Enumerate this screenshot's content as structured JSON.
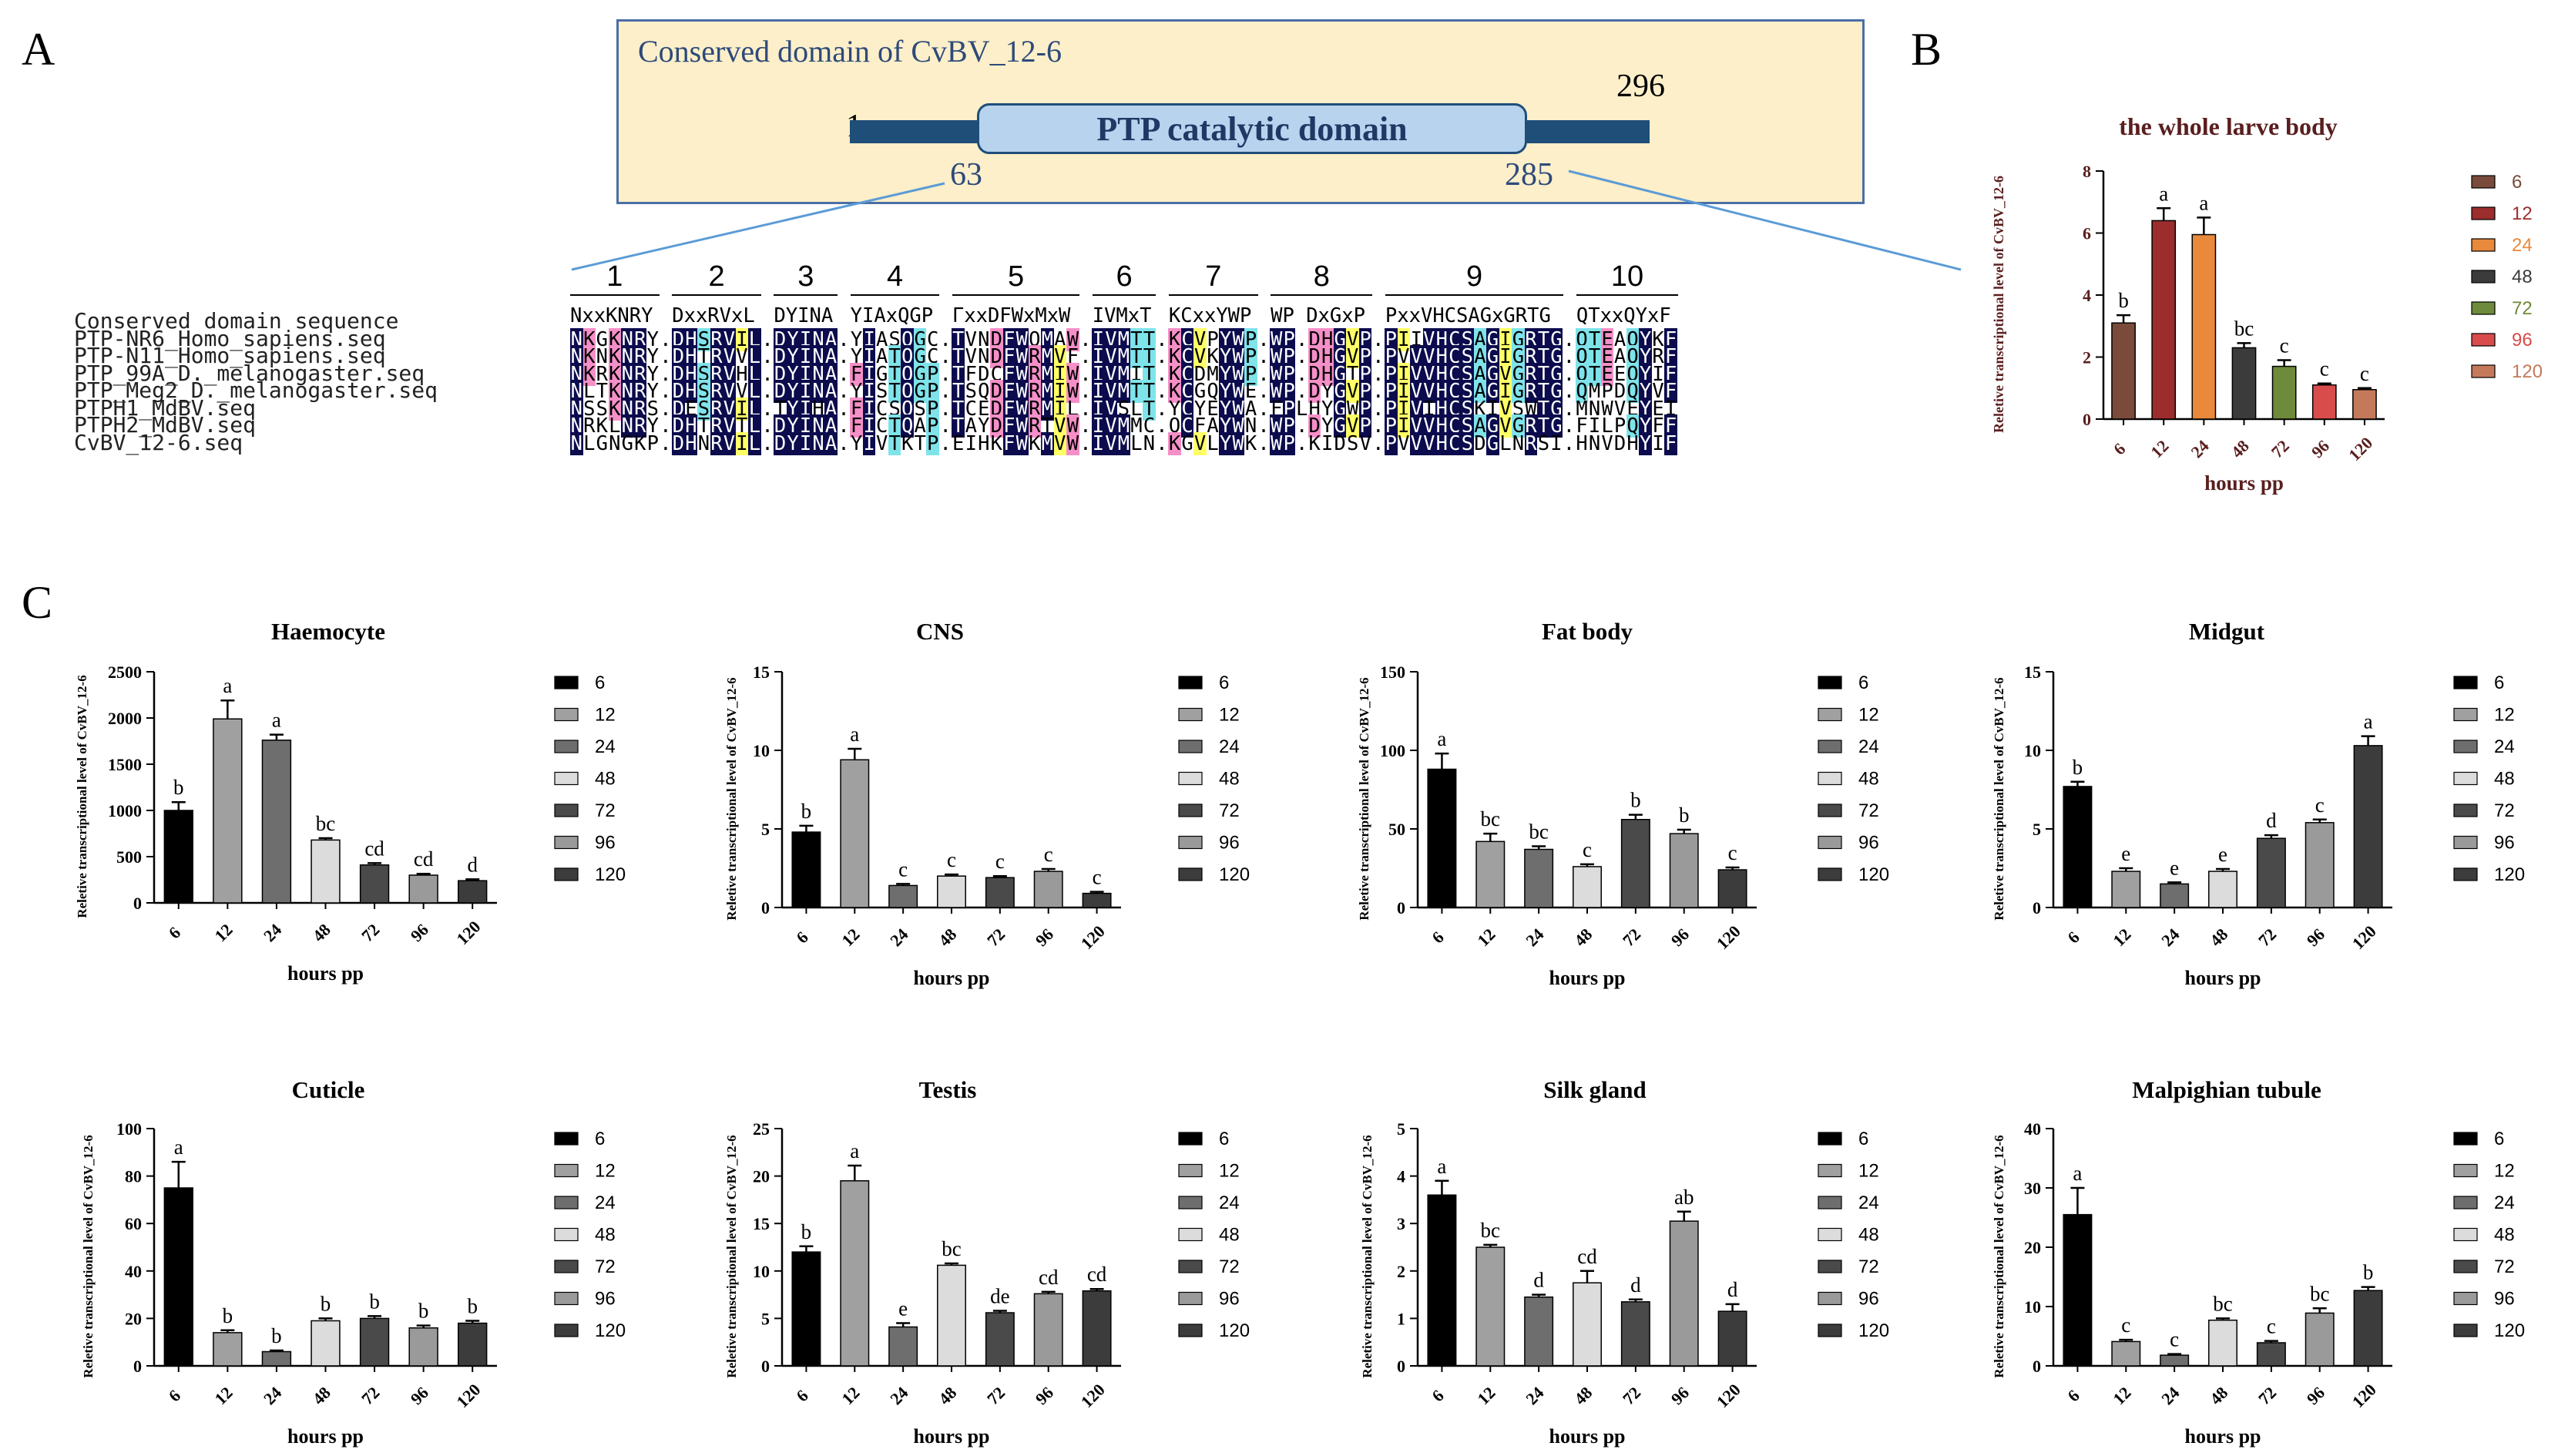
{
  "panel_labels": {
    "a": "A",
    "b": "B",
    "c": "C"
  },
  "domain_diagram": {
    "title": "Conserved domain  of CvBV_12-6",
    "start": "1",
    "end": "296",
    "domain_start": "63",
    "domain_end": "285",
    "domain_label": "PTP catalytic domain",
    "colors": {
      "box_bg": "#fcefc9",
      "bar": "#1f4e79",
      "domain_fill": "#b7d3ee",
      "text": "#2e4a7a"
    }
  },
  "alignment": {
    "motif_numbers": [
      "1",
      "2",
      "3",
      "4",
      "5",
      "6",
      "7",
      "8",
      "9",
      "10"
    ],
    "consensus": [
      "NxxKNRY",
      "DxxRVxL",
      "DYINA",
      "YIAxQGP",
      "ΓxxDFWxMxW",
      "IVMxT",
      "KCxxYWP",
      "WP DxGxP",
      "PxxVHCSAGxGRTG",
      "QTxxQYxF"
    ],
    "labels": [
      "Conserved domain sequence",
      "PTP-NR6_Homo_sapiens.seq",
      "PTP-N11_Homo_sapiens.seq",
      "PTP_99A_D._melanogaster.seq",
      "PTP_Meg2_D._melanogaster.seq",
      "PTPH1_MdBV.seq",
      "PTPH2_MdBV.seq",
      "CvBV_12-6.seq"
    ],
    "rows": [
      "NKGKNRY.DHSRVIL.DYINA.YIASQGC.TVNDFWQMAW.IVMTT.KCVPYWP.WP.DHGVP.PIIVHCSAGIGRTG.QTEAQYKF",
      "NKNKNRY.DHTRVVL.DYINA.YIATQGC.TVNDFWRMVF.IVMTT.KCVKYWP.WP.DHGVP.PVVVHCSAGIGRTG.QTEAQYRF",
      "NKRKNRY.DHSRVHL.DYINA.FIGTQGP.TFDCFWRMIW.IVMIT.KCDMYWP.WP.DHGTP.PIVVHCSAGVGRTG.QTEEQYIF",
      "NLTKNRY.DHSRVVL.DYINA.YISTQGP.TSQDFWRMIW.IVMTT.KCGQYWE.WP.DYGVP.PIVVHCSAGIGRTG.QMPDQYVF",
      "NSSKNRS.DESRVIL.TYIHA.FICSQSP.TCEDFWRMIL.IVSLT.YCYEYWA.FPLHYGWP.PIVIHCSKIVSWTG.MNWVEYEI",
      "NRKLNRY.DHTRVTL.DYINA.FICTQAP.TAYDFWRTVW.IVMMC.QCFAYWN.WP.DYGVP.PIVVHCSAGVGRTG.FILPQYFF",
      "NLGNGKP.DHNRVIL.DYINA.YIVTKTP.EIHKFWKMVW.IVMLN.KGVLYWK.WP.KIDSV.PVVVHCSDGLNRSI.HNVDHYIF"
    ],
    "highlight_colors": {
      "navy": "#0b0b4d",
      "cyan": "#7fe3ea",
      "pink": "#f58fc8",
      "yellow": "#ffff66"
    }
  },
  "chart_data": [
    {
      "type": "bar",
      "title": "the whole larve body",
      "xlabel": "hours pp",
      "ylabel": "Reletive transcriptional level of CvBV_12-6",
      "categories": [
        "6",
        "12",
        "24",
        "48",
        "72",
        "96",
        "120"
      ],
      "values": [
        3.1,
        6.4,
        5.95,
        2.3,
        1.7,
        1.1,
        0.95
      ],
      "errors": [
        0.25,
        0.4,
        0.55,
        0.15,
        0.2,
        0.05,
        0.05
      ],
      "letters": [
        "b",
        "a",
        "a",
        "bc",
        "c",
        "c",
        "c"
      ],
      "ylim": [
        0,
        8
      ],
      "yticks": [
        "0",
        "2",
        "4",
        "6",
        "8"
      ],
      "legend": [
        "6",
        "12",
        "24",
        "48",
        "72",
        "96",
        "120"
      ],
      "colors": [
        "#7a4a3a",
        "#9b2d2d",
        "#e8893c",
        "#3b3b3b",
        "#6d8b3a",
        "#d94c4c",
        "#c47a5a"
      ],
      "legend_text_colors": [
        "#7a4a3a",
        "#9b2d2d",
        "#e8893c",
        "#3b3b3b",
        "#6d8b3a",
        "#d94c4c",
        "#c47a5a"
      ]
    },
    {
      "type": "bar",
      "title": "Haemocyte",
      "xlabel": "hours pp",
      "ylabel": "Reletive transcriptional level of CvBV_12-6",
      "categories": [
        "6",
        "12",
        "24",
        "48",
        "72",
        "96",
        "120"
      ],
      "values": [
        1000,
        1990,
        1760,
        680,
        410,
        300,
        240
      ],
      "errors": [
        90,
        200,
        60,
        20,
        20,
        15,
        15
      ],
      "letters": [
        "b",
        "a",
        "a",
        "bc",
        "cd",
        "cd",
        "d"
      ],
      "ylim": [
        0,
        2500
      ],
      "yticks": [
        "0",
        "500",
        "1000",
        "1500",
        "2000",
        "2500"
      ],
      "legend": [
        "6",
        "12",
        "24",
        "48",
        "72",
        "96",
        "120"
      ]
    },
    {
      "type": "bar",
      "title": "CNS",
      "xlabel": "hours pp",
      "ylabel": "Reletive transcriptional level of CvBV_12-6",
      "categories": [
        "6",
        "12",
        "24",
        "48",
        "72",
        "96",
        "120"
      ],
      "values": [
        4.8,
        9.4,
        1.4,
        2.0,
        1.9,
        2.3,
        0.9
      ],
      "errors": [
        0.4,
        0.7,
        0.1,
        0.1,
        0.1,
        0.15,
        0.1
      ],
      "letters": [
        "b",
        "a",
        "c",
        "c",
        "c",
        "c",
        "c"
      ],
      "ylim": [
        0,
        15
      ],
      "yticks": [
        "0",
        "5",
        "10",
        "15"
      ],
      "legend": [
        "6",
        "12",
        "24",
        "48",
        "72",
        "96",
        "120"
      ]
    },
    {
      "type": "bar",
      "title": "Fat body",
      "xlabel": "hours pp",
      "ylabel": "Reletive transcriptional level of CvBV_12-6",
      "categories": [
        "6",
        "12",
        "24",
        "48",
        "72",
        "96",
        "120"
      ],
      "values": [
        88,
        42,
        37,
        26,
        56,
        47,
        24
      ],
      "errors": [
        10,
        5,
        2,
        1.5,
        3,
        2.5,
        1.5
      ],
      "letters": [
        "a",
        "bc",
        "bc",
        "c",
        "b",
        "b",
        "c"
      ],
      "ylim": [
        0,
        150
      ],
      "yticks": [
        "0",
        "50",
        "100",
        "150"
      ],
      "legend": [
        "6",
        "12",
        "24",
        "48",
        "72",
        "96",
        "120"
      ]
    },
    {
      "type": "bar",
      "title": "Midgut",
      "xlabel": "hours pp",
      "ylabel": "Reletive transcriptional level of CvBV_12-6",
      "categories": [
        "6",
        "12",
        "24",
        "48",
        "72",
        "96",
        "120"
      ],
      "values": [
        7.7,
        2.3,
        1.5,
        2.3,
        4.4,
        5.4,
        10.3
      ],
      "errors": [
        0.3,
        0.2,
        0.1,
        0.15,
        0.2,
        0.2,
        0.6
      ],
      "letters": [
        "b",
        "e",
        "e",
        "e",
        "d",
        "c",
        "a"
      ],
      "ylim": [
        0,
        15
      ],
      "yticks": [
        "0",
        "5",
        "10",
        "15"
      ],
      "legend": [
        "6",
        "12",
        "24",
        "48",
        "72",
        "96",
        "120"
      ]
    },
    {
      "type": "bar",
      "title": "Cuticle",
      "xlabel": "hours pp",
      "ylabel": "Reletive transcriptional level of CvBV_12-6",
      "categories": [
        "6",
        "12",
        "24",
        "48",
        "72",
        "96",
        "120"
      ],
      "values": [
        75,
        14,
        6,
        19,
        20,
        16,
        18
      ],
      "errors": [
        11,
        1,
        0.5,
        1,
        1,
        1,
        1
      ],
      "letters": [
        "a",
        "b",
        "b",
        "b",
        "b",
        "b",
        "b"
      ],
      "ylim": [
        0,
        100
      ],
      "yticks": [
        "0",
        "20",
        "40",
        "60",
        "80",
        "100"
      ],
      "legend": [
        "6",
        "12",
        "24",
        "48",
        "72",
        "96",
        "120"
      ]
    },
    {
      "type": "bar",
      "title": "Testis",
      "xlabel": "hours pp",
      "ylabel": "Reletive transcriptional level of CvBV_12-6",
      "categories": [
        "6",
        "12",
        "24",
        "48",
        "72",
        "96",
        "120"
      ],
      "values": [
        12,
        19.5,
        4.1,
        10.6,
        5.6,
        7.6,
        7.9
      ],
      "errors": [
        0.6,
        1.6,
        0.4,
        0.2,
        0.2,
        0.2,
        0.2
      ],
      "letters": [
        "b",
        "a",
        "e",
        "bc",
        "de",
        "cd",
        "cd"
      ],
      "ylim": [
        0,
        25
      ],
      "yticks": [
        "0",
        "5",
        "10",
        "15",
        "20",
        "25"
      ],
      "legend": [
        "6",
        "12",
        "24",
        "48",
        "72",
        "96",
        "120"
      ]
    },
    {
      "type": "bar",
      "title": "Silk gland",
      "xlabel": "hours pp",
      "ylabel": "Reletive transcriptional level of CvBV_12-6",
      "categories": [
        "6",
        "12",
        "24",
        "48",
        "72",
        "96",
        "120"
      ],
      "values": [
        3.6,
        2.5,
        1.45,
        1.75,
        1.35,
        3.05,
        1.15
      ],
      "errors": [
        0.3,
        0.05,
        0.05,
        0.25,
        0.05,
        0.2,
        0.15
      ],
      "letters": [
        "a",
        "bc",
        "d",
        "cd",
        "d",
        "ab",
        "d"
      ],
      "ylim": [
        0,
        5
      ],
      "yticks": [
        "0",
        "1",
        "2",
        "3",
        "4",
        "5"
      ],
      "legend": [
        "6",
        "12",
        "24",
        "48",
        "72",
        "96",
        "120"
      ]
    },
    {
      "type": "bar",
      "title": "Malpighian tubule",
      "xlabel": "hours pp",
      "ylabel": "Reletive transcriptional level of CvBV_12-6",
      "categories": [
        "6",
        "12",
        "24",
        "48",
        "72",
        "96",
        "120"
      ],
      "values": [
        25.5,
        4.1,
        1.8,
        7.7,
        3.9,
        8.9,
        12.7
      ],
      "errors": [
        4.5,
        0.3,
        0.2,
        0.3,
        0.3,
        0.8,
        0.6
      ],
      "letters": [
        "a",
        "c",
        "c",
        "bc",
        "c",
        "bc",
        "b"
      ],
      "ylim": [
        0,
        40
      ],
      "yticks": [
        "0",
        "10",
        "20",
        "30",
        "40"
      ],
      "legend": [
        "6",
        "12",
        "24",
        "48",
        "72",
        "96",
        "120"
      ]
    }
  ],
  "grey_colors": [
    "#000000",
    "#a0a0a0",
    "#6e6e6e",
    "#dcdcdc",
    "#4a4a4a",
    "#9a9a9a",
    "#3c3c3c"
  ]
}
